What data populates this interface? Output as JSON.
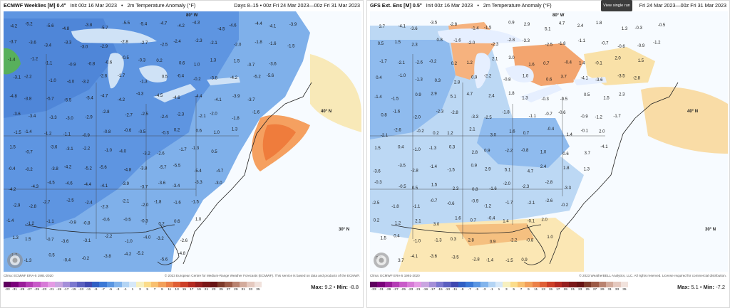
{
  "panels": [
    {
      "id": "left",
      "model": "ECMWF Weeklies [M] 0.4°",
      "init": "Init 00z 16 Mar 2023",
      "variable": "2m Temperature Anomaly (°F)",
      "valid": "Days 8–15 • 00z Fri 24 Mar 2023—00z Fri 31 Mar 2023",
      "footer_left": "Clima: ECMWF ERA-5 1991-2020",
      "footer_right": "© 2023 European Centre for Medium-Range Weather Forecasts (ECMWF). This service is based on data and products of the ECMWF.",
      "max_label": "Max:",
      "max": "9.2",
      "min_label": "Min:",
      "min": "-8.8",
      "lat40": "40° N",
      "lat30": "30° N",
      "lon80": "80° W",
      "values": [
        "-4.2",
        "-5.2",
        "-5.6",
        "-4.8",
        "-3.8",
        "-5.7",
        "-5.5",
        "-5.4",
        "-4.7",
        "-4.2",
        "-4.3",
        "-4.5",
        "-4.6",
        "-4.4",
        "-4.1",
        "-3.9",
        "-3.7",
        "-3.6",
        "-3.4",
        "-3.3",
        "-3.0",
        "-2.9",
        "-2.8",
        "-2.7",
        "-2.5",
        "-2.4",
        "-2.3",
        "-2.1",
        "-2.0",
        "-1.8",
        "-1.6",
        "-1.5",
        "-1.4",
        "-1.2",
        "-1.1",
        "-0.9",
        "-0.8",
        "-0.6",
        "-0.5",
        "-0.3",
        "0.2",
        "0.6",
        "1.0",
        "1.3",
        "1.5",
        "-0.7",
        "-3.6",
        "-3.1",
        "-2.2",
        "-1.0",
        "-4.0",
        "-3.2",
        "-2.6",
        "-1.7",
        "-1.3",
        "0.5",
        "-0.4",
        "-0.2",
        "-3.8"
      ]
    },
    {
      "id": "right",
      "model": "GFS Ext. Ens [M] 0.5°",
      "init": "Init 00z 16 Mar 2023",
      "variable": "2m Temperature Anomaly (°F)",
      "valid": "Fri 24 Mar 2023—00z Fri 31 Mar 2023",
      "footer_left": "Clima: ECMWF ERA-5 1991-2020",
      "footer_right": "© 2023 WeatherBELL Analytics, LLC. All rights reserved. License required for commercial distribution.",
      "max_label": "Max:",
      "max": "5.1",
      "min_label": "Min:",
      "min": "-7.2",
      "lat40": "40° N",
      "lat30": "30° N",
      "lon80": "80° W",
      "values": [
        "3.7",
        "-4.1",
        "-3.6",
        "-3.5",
        "-2.8",
        "-1.4",
        "-1.5",
        "0.9",
        "2.9",
        "5.1",
        "4.7",
        "2.4",
        "1.8",
        "1.3",
        "-0.3",
        "-0.5",
        "0.5",
        "1.5",
        "2.3",
        "0.8",
        "-1.6",
        "-2.0",
        "-2.3",
        "-2.8",
        "-3.3",
        "-2.5",
        "-1.8",
        "-1.1",
        "-0.7",
        "-0.6",
        "-0.9",
        "-1.2",
        "-1.7",
        "-2.1",
        "-2.6",
        "-0.2",
        "0.2",
        "1.2",
        "2.1",
        "3.0",
        "1.6",
        "0.7",
        "-0.4",
        "1.4",
        "-0.1",
        "2.0",
        "1.5",
        "0.4",
        "-1.0",
        "-1.3",
        "0.3",
        "2.8",
        "0.9",
        "-2.2",
        "-0.8",
        "1.0",
        "0.6"
      ]
    }
  ],
  "tooltip": "View single run",
  "colorbar": {
    "ticks": [
      "-33",
      "-31",
      "-29",
      "-27",
      "-25",
      "-23",
      "-21",
      "-19",
      "-17",
      "-15",
      "-13",
      "-11",
      "-9",
      "-7",
      "-5",
      "-3",
      "-1",
      "1",
      "3",
      "5",
      "7",
      "9",
      "11",
      "13",
      "15",
      "17",
      "19",
      "21",
      "23",
      "25",
      "27",
      "29",
      "31",
      "33",
      "35"
    ],
    "colors": [
      "#5e005e",
      "#7a007a",
      "#9a1d9a",
      "#b43cb4",
      "#c85ac8",
      "#d77ad7",
      "#e49ae4",
      "#c9a5e0",
      "#a48fd8",
      "#7b78cf",
      "#5a5fbf",
      "#3f48b0",
      "#2f5fc4",
      "#3a78d6",
      "#5a96e2",
      "#82b4ec",
      "#b3d4f4",
      "#d6e8f8",
      "#f7f0bf",
      "#fbdc8a",
      "#f8c070",
      "#f2a05a",
      "#eb8048",
      "#df5f36",
      "#cc3f28",
      "#b42a22",
      "#962020",
      "#7a1818",
      "#661313",
      "#7d3a2a",
      "#9b5a46",
      "#b98370",
      "#d3ab9c",
      "#e5c9bf",
      "#f1e2dc"
    ]
  }
}
